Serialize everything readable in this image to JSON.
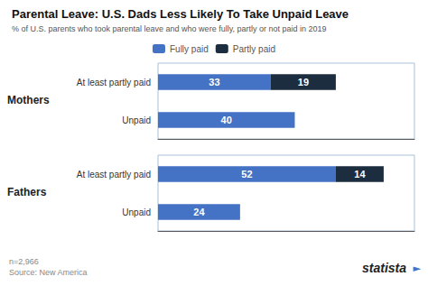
{
  "title": "Parental Leave: U.S. Dads Less Likely To Take Unpaid Leave",
  "subtitle": "% of U.S. parents who took parental leave and who were fully, partly or not paid in 2019",
  "annotations": [
    "n=2,966\nSource: New America",
    "statista",
    "►"
  ],
  "chart_data": [
    {
      "type": "bar",
      "title": "Mothers",
      "orientation": "horizontal",
      "stacked": true,
      "data_labels": true,
      "tick_labels": "y",
      "legend": "top",
      "grid": false,
      "categories": [
        "At least partly paid",
        "Unpaid"
      ],
      "series": [
        {
          "name": "Fully paid",
          "color": "#4472c4",
          "values": [
            33,
            40
          ]
        },
        {
          "name": "Partly paid",
          "color": "#1c2d3f",
          "values": [
            19,
            0
          ]
        }
      ],
      "xlim": [
        0,
        75
      ]
    },
    {
      "type": "bar",
      "title": "Fathers",
      "orientation": "horizontal",
      "stacked": true,
      "data_labels": true,
      "tick_labels": "y",
      "legend": "top",
      "grid": false,
      "categories": [
        "At least partly paid",
        "Unpaid"
      ],
      "series": [
        {
          "name": "Fully paid",
          "color": "#4472c4",
          "values": [
            52,
            24
          ]
        },
        {
          "name": "Partly paid",
          "color": "#1c2d3f",
          "values": [
            14,
            0
          ]
        }
      ],
      "xlim": [
        0,
        75
      ]
    }
  ]
}
